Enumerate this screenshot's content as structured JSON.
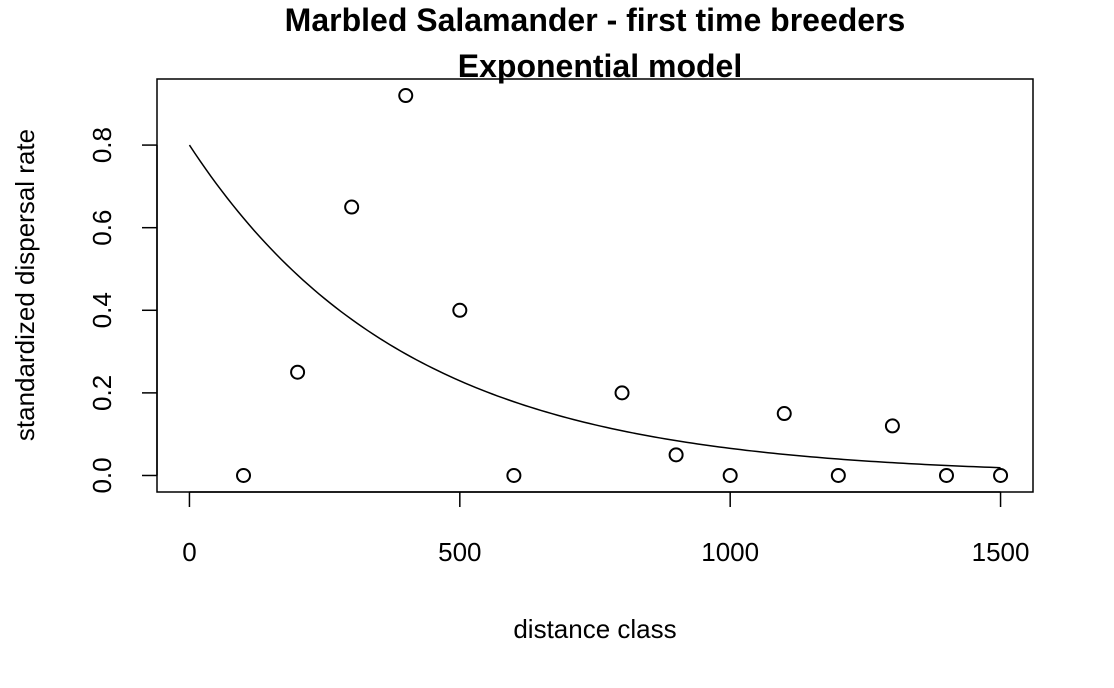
{
  "chart_data": {
    "type": "scatter",
    "title": "Marbled Salamander - first time breeders",
    "subtitle": "Exponential model",
    "xlabel": "distance class",
    "ylabel": "standardized dispersal rate",
    "xlim": [
      -60,
      1560
    ],
    "ylim": [
      -0.04,
      0.96
    ],
    "xticks": [
      0,
      500,
      1000,
      1500
    ],
    "xtick_labels": [
      "0",
      "500",
      "1000",
      "1500"
    ],
    "yticks": [
      0.0,
      0.2,
      0.4,
      0.6,
      0.8
    ],
    "ytick_labels": [
      "0.0",
      "0.2",
      "0.4",
      "0.6",
      "0.8"
    ],
    "grid": false,
    "legend": "none",
    "points": {
      "x": [
        100,
        200,
        300,
        400,
        500,
        600,
        800,
        900,
        1000,
        1100,
        1200,
        1300,
        1400,
        1500
      ],
      "y": [
        0.0,
        0.25,
        0.65,
        0.92,
        0.4,
        0.0,
        0.2,
        0.05,
        0.0,
        0.15,
        0.0,
        0.12,
        0.0,
        0.0
      ],
      "marker": "open-circle"
    },
    "fitted_curve": {
      "model": "exponential",
      "a": 0.8,
      "b": 0.0025,
      "x_range": [
        0,
        1500
      ]
    }
  }
}
